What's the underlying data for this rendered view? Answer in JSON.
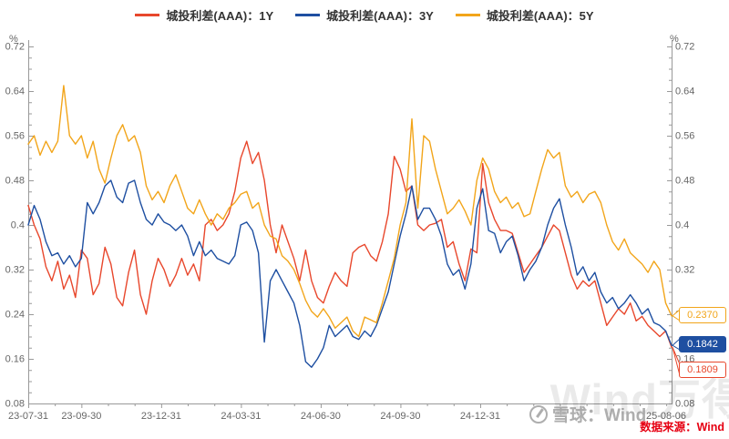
{
  "legend": {
    "items": [
      {
        "label": "城投利差(AAA)：1Y",
        "color": "#e8472c"
      },
      {
        "label": "城投利差(AAA)：3Y",
        "color": "#1e4fa1"
      },
      {
        "label": "城投利差(AAA)：5Y",
        "color": "#f2a51a"
      }
    ]
  },
  "y_axis": {
    "unit_left": "%",
    "unit_right": "%",
    "tick_labels": [
      "0.72",
      "0.64",
      "0.56",
      "0.48",
      "0.4",
      "0.32",
      "0.24",
      "0.16",
      "0.08"
    ],
    "minor_step": 0.02
  },
  "x_axis": {
    "tick_labels": [
      "23-07-31",
      "23-09-30",
      "23-12-31",
      "24-03-31",
      "24-06-30",
      "24-09-30",
      "24-12-31",
      "25-08-06"
    ],
    "tick_months": [
      0,
      2,
      5,
      8,
      11,
      14,
      17,
      24.2
    ],
    "total_months": 24.2
  },
  "end_labels": [
    {
      "value": "0.2370",
      "num": 0.237,
      "series": "城投利差(AAA)：5Y",
      "color": "#f2a51a",
      "filled": false
    },
    {
      "value": "0.1842",
      "num": 0.1842,
      "series": "城投利差(AAA)：3Y",
      "color": "#1e4fa1",
      "filled": true
    },
    {
      "value": "0.1809",
      "num": 0.1809,
      "series": "城投利差(AAA)：1Y",
      "color": "#e8472c",
      "filled": false
    }
  ],
  "watermarks": {
    "big": "Wind万得",
    "small": "雪球：Wind"
  },
  "source": "数据来源：Wind",
  "chart_data": {
    "type": "line",
    "title": "",
    "xlabel": "",
    "ylabel": "%",
    "ylim": [
      0.08,
      0.72
    ],
    "grid": false,
    "legend_position": "top",
    "x_range": [
      "23-07-31",
      "25-08-06"
    ],
    "x_note": "110 evenly spaced (≈weekly) samples from 23-07-31 to 25-08-06",
    "series": [
      {
        "name": "城投利差(AAA)：1Y",
        "color": "#e8472c",
        "end_value": 0.1809,
        "values": [
          0.435,
          0.4,
          0.375,
          0.325,
          0.3,
          0.335,
          0.285,
          0.31,
          0.27,
          0.355,
          0.34,
          0.275,
          0.295,
          0.36,
          0.33,
          0.27,
          0.255,
          0.315,
          0.355,
          0.275,
          0.24,
          0.3,
          0.34,
          0.32,
          0.29,
          0.31,
          0.34,
          0.31,
          0.33,
          0.3,
          0.4,
          0.41,
          0.39,
          0.4,
          0.42,
          0.46,
          0.52,
          0.55,
          0.51,
          0.53,
          0.48,
          0.4,
          0.35,
          0.4,
          0.37,
          0.34,
          0.3,
          0.355,
          0.3,
          0.27,
          0.26,
          0.29,
          0.315,
          0.3,
          0.29,
          0.35,
          0.36,
          0.365,
          0.345,
          0.335,
          0.37,
          0.42,
          0.523,
          0.5,
          0.46,
          0.47,
          0.4,
          0.39,
          0.4,
          0.403,
          0.41,
          0.36,
          0.37,
          0.33,
          0.3,
          0.357,
          0.35,
          0.51,
          0.44,
          0.41,
          0.39,
          0.39,
          0.385,
          0.35,
          0.315,
          0.33,
          0.345,
          0.36,
          0.38,
          0.4,
          0.39,
          0.35,
          0.31,
          0.285,
          0.3,
          0.29,
          0.3,
          0.26,
          0.22,
          0.235,
          0.25,
          0.24,
          0.26,
          0.228,
          0.236,
          0.22,
          0.21,
          0.2,
          0.21,
          0.1809
        ]
      },
      {
        "name": "城投利差(AAA)：3Y",
        "color": "#1e4fa1",
        "end_value": 0.1842,
        "values": [
          0.4,
          0.435,
          0.41,
          0.37,
          0.345,
          0.35,
          0.33,
          0.345,
          0.325,
          0.34,
          0.44,
          0.42,
          0.44,
          0.47,
          0.48,
          0.45,
          0.44,
          0.475,
          0.48,
          0.44,
          0.41,
          0.4,
          0.42,
          0.405,
          0.4,
          0.39,
          0.4,
          0.38,
          0.345,
          0.37,
          0.345,
          0.355,
          0.34,
          0.335,
          0.33,
          0.345,
          0.4,
          0.405,
          0.39,
          0.35,
          0.19,
          0.3,
          0.32,
          0.3,
          0.28,
          0.26,
          0.22,
          0.155,
          0.145,
          0.16,
          0.18,
          0.22,
          0.2,
          0.21,
          0.22,
          0.2,
          0.195,
          0.21,
          0.2,
          0.22,
          0.25,
          0.28,
          0.33,
          0.38,
          0.42,
          0.47,
          0.41,
          0.43,
          0.43,
          0.41,
          0.38,
          0.33,
          0.31,
          0.32,
          0.285,
          0.33,
          0.43,
          0.465,
          0.39,
          0.385,
          0.35,
          0.37,
          0.38,
          0.345,
          0.3,
          0.32,
          0.335,
          0.36,
          0.4,
          0.43,
          0.447,
          0.4,
          0.36,
          0.31,
          0.325,
          0.3,
          0.315,
          0.28,
          0.26,
          0.27,
          0.25,
          0.26,
          0.275,
          0.26,
          0.24,
          0.25,
          0.225,
          0.22,
          0.21,
          0.1842
        ]
      },
      {
        "name": "城投利差(AAA)：5Y",
        "color": "#f2a51a",
        "end_value": 0.237,
        "values": [
          0.545,
          0.56,
          0.525,
          0.55,
          0.53,
          0.55,
          0.65,
          0.56,
          0.545,
          0.56,
          0.52,
          0.55,
          0.5,
          0.475,
          0.52,
          0.56,
          0.58,
          0.55,
          0.56,
          0.53,
          0.47,
          0.445,
          0.46,
          0.44,
          0.47,
          0.49,
          0.46,
          0.43,
          0.42,
          0.445,
          0.42,
          0.4,
          0.42,
          0.41,
          0.43,
          0.44,
          0.455,
          0.46,
          0.43,
          0.44,
          0.4,
          0.38,
          0.375,
          0.345,
          0.335,
          0.32,
          0.295,
          0.265,
          0.245,
          0.235,
          0.25,
          0.235,
          0.215,
          0.225,
          0.235,
          0.21,
          0.2,
          0.235,
          0.23,
          0.225,
          0.26,
          0.3,
          0.34,
          0.4,
          0.44,
          0.59,
          0.43,
          0.56,
          0.55,
          0.5,
          0.46,
          0.42,
          0.43,
          0.445,
          0.425,
          0.4,
          0.48,
          0.52,
          0.5,
          0.46,
          0.44,
          0.45,
          0.43,
          0.44,
          0.415,
          0.42,
          0.46,
          0.5,
          0.535,
          0.52,
          0.53,
          0.47,
          0.45,
          0.46,
          0.44,
          0.455,
          0.46,
          0.44,
          0.4,
          0.37,
          0.355,
          0.375,
          0.35,
          0.34,
          0.33,
          0.315,
          0.335,
          0.32,
          0.26,
          0.237
        ]
      }
    ]
  }
}
